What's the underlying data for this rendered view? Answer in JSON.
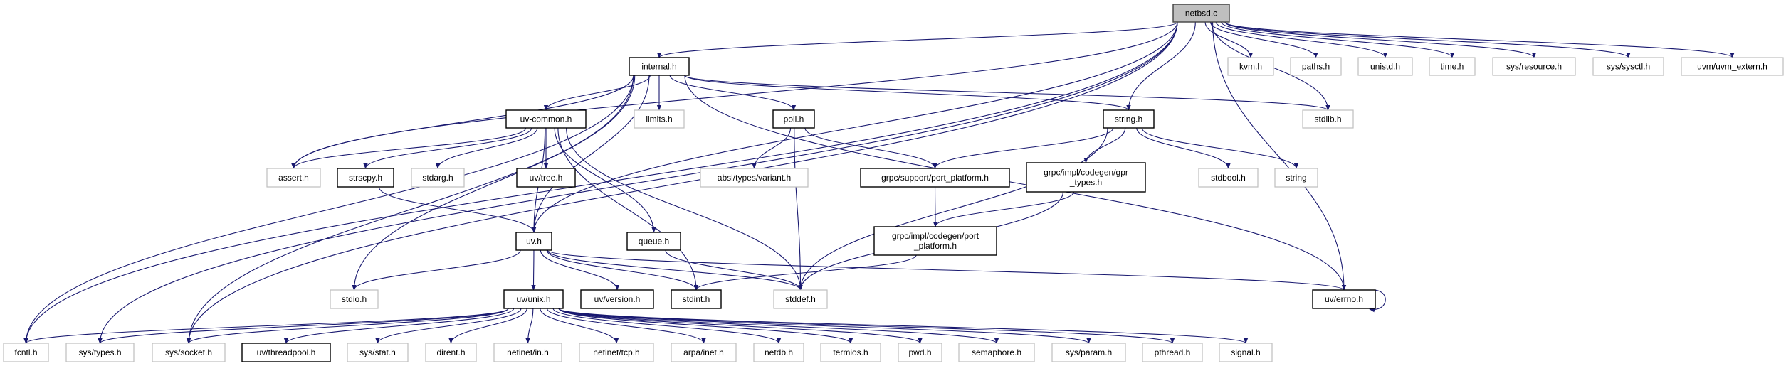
{
  "colors": {
    "edge": "#191970",
    "root_fill": "#bfbfbf",
    "documented_border": "#000000",
    "undocumented_border": "#bfbfbf"
  },
  "nodes": [
    {
      "id": "netbsd.c",
      "lines": [
        "netbsd.c"
      ],
      "kind": "root"
    },
    {
      "id": "internal.h",
      "lines": [
        "internal.h"
      ],
      "kind": "doc"
    },
    {
      "id": "kvm.h",
      "lines": [
        "kvm.h"
      ],
      "kind": "ext"
    },
    {
      "id": "paths.h",
      "lines": [
        "paths.h"
      ],
      "kind": "ext"
    },
    {
      "id": "unistd.h",
      "lines": [
        "unistd.h"
      ],
      "kind": "ext"
    },
    {
      "id": "time.h",
      "lines": [
        "time.h"
      ],
      "kind": "ext"
    },
    {
      "id": "sys/resource.h",
      "lines": [
        "sys/resource.h"
      ],
      "kind": "ext"
    },
    {
      "id": "sys/sysctl.h",
      "lines": [
        "sys/sysctl.h"
      ],
      "kind": "ext"
    },
    {
      "id": "uvm/uvm_extern.h",
      "lines": [
        "uvm/uvm_extern.h"
      ],
      "kind": "ext"
    },
    {
      "id": "uv-common.h",
      "lines": [
        "uv-common.h"
      ],
      "kind": "doc"
    },
    {
      "id": "limits.h",
      "lines": [
        "limits.h"
      ],
      "kind": "ext"
    },
    {
      "id": "poll.h",
      "lines": [
        "poll.h"
      ],
      "kind": "doc"
    },
    {
      "id": "string.h",
      "lines": [
        "string.h"
      ],
      "kind": "doc"
    },
    {
      "id": "stdlib.h",
      "lines": [
        "stdlib.h"
      ],
      "kind": "ext"
    },
    {
      "id": "assert.h",
      "lines": [
        "assert.h"
      ],
      "kind": "ext"
    },
    {
      "id": "strscpy.h",
      "lines": [
        "strscpy.h"
      ],
      "kind": "doc"
    },
    {
      "id": "stdarg.h",
      "lines": [
        "stdarg.h"
      ],
      "kind": "ext"
    },
    {
      "id": "uv/tree.h",
      "lines": [
        "uv/tree.h"
      ],
      "kind": "doc"
    },
    {
      "id": "absl/types/variant.h",
      "lines": [
        "absl/types/variant.h"
      ],
      "kind": "ext"
    },
    {
      "id": "grpc/support/port_platform.h",
      "lines": [
        "grpc/support/port_platform.h"
      ],
      "kind": "doc"
    },
    {
      "id": "grpc/impl/codegen/gpr_types.h",
      "lines": [
        "grpc/impl/codegen/gpr",
        "_types.h"
      ],
      "kind": "doc"
    },
    {
      "id": "stdbool.h",
      "lines": [
        "stdbool.h"
      ],
      "kind": "ext"
    },
    {
      "id": "string",
      "lines": [
        "string"
      ],
      "kind": "ext"
    },
    {
      "id": "uv.h",
      "lines": [
        "uv.h"
      ],
      "kind": "doc"
    },
    {
      "id": "queue.h",
      "lines": [
        "queue.h"
      ],
      "kind": "doc"
    },
    {
      "id": "grpc/impl/codegen/port_platform.h",
      "lines": [
        "grpc/impl/codegen/port",
        "_platform.h"
      ],
      "kind": "doc"
    },
    {
      "id": "stdio.h",
      "lines": [
        "stdio.h"
      ],
      "kind": "ext"
    },
    {
      "id": "uv/unix.h",
      "lines": [
        "uv/unix.h"
      ],
      "kind": "doc"
    },
    {
      "id": "uv/version.h",
      "lines": [
        "uv/version.h"
      ],
      "kind": "doc"
    },
    {
      "id": "stdint.h",
      "lines": [
        "stdint.h"
      ],
      "kind": "doc"
    },
    {
      "id": "stddef.h",
      "lines": [
        "stddef.h"
      ],
      "kind": "ext"
    },
    {
      "id": "uv/errno.h",
      "lines": [
        "uv/errno.h"
      ],
      "kind": "doc"
    },
    {
      "id": "fcntl.h",
      "lines": [
        "fcntl.h"
      ],
      "kind": "ext"
    },
    {
      "id": "sys/types.h",
      "lines": [
        "sys/types.h"
      ],
      "kind": "ext"
    },
    {
      "id": "sys/socket.h",
      "lines": [
        "sys/socket.h"
      ],
      "kind": "ext"
    },
    {
      "id": "uv/threadpool.h",
      "lines": [
        "uv/threadpool.h"
      ],
      "kind": "doc"
    },
    {
      "id": "sys/stat.h",
      "lines": [
        "sys/stat.h"
      ],
      "kind": "ext"
    },
    {
      "id": "dirent.h",
      "lines": [
        "dirent.h"
      ],
      "kind": "ext"
    },
    {
      "id": "netinet/in.h",
      "lines": [
        "netinet/in.h"
      ],
      "kind": "ext"
    },
    {
      "id": "netinet/tcp.h",
      "lines": [
        "netinet/tcp.h"
      ],
      "kind": "ext"
    },
    {
      "id": "arpa/inet.h",
      "lines": [
        "arpa/inet.h"
      ],
      "kind": "ext"
    },
    {
      "id": "netdb.h",
      "lines": [
        "netdb.h"
      ],
      "kind": "ext"
    },
    {
      "id": "termios.h",
      "lines": [
        "termios.h"
      ],
      "kind": "ext"
    },
    {
      "id": "pwd.h",
      "lines": [
        "pwd.h"
      ],
      "kind": "ext"
    },
    {
      "id": "semaphore.h",
      "lines": [
        "semaphore.h"
      ],
      "kind": "ext"
    },
    {
      "id": "sys/param.h",
      "lines": [
        "sys/param.h"
      ],
      "kind": "ext"
    },
    {
      "id": "pthread.h",
      "lines": [
        "pthread.h"
      ],
      "kind": "ext"
    },
    {
      "id": "signal.h",
      "lines": [
        "signal.h"
      ],
      "kind": "ext"
    }
  ],
  "edges": [
    [
      "netbsd.c",
      "internal.h"
    ],
    [
      "netbsd.c",
      "fcntl.h"
    ],
    [
      "netbsd.c",
      "sys/types.h"
    ],
    [
      "netbsd.c",
      "sys/socket.h"
    ],
    [
      "netbsd.c",
      "assert.h"
    ],
    [
      "netbsd.c",
      "uv.h"
    ],
    [
      "netbsd.c",
      "string.h"
    ],
    [
      "netbsd.c",
      "stdlib.h"
    ],
    [
      "netbsd.c",
      "uv/errno.h"
    ],
    [
      "netbsd.c",
      "kvm.h"
    ],
    [
      "netbsd.c",
      "paths.h"
    ],
    [
      "netbsd.c",
      "unistd.h"
    ],
    [
      "netbsd.c",
      "time.h"
    ],
    [
      "netbsd.c",
      "sys/resource.h"
    ],
    [
      "netbsd.c",
      "sys/sysctl.h"
    ],
    [
      "netbsd.c",
      "uvm/uvm_extern.h"
    ],
    [
      "internal.h",
      "uv-common.h"
    ],
    [
      "internal.h",
      "limits.h"
    ],
    [
      "internal.h",
      "poll.h"
    ],
    [
      "internal.h",
      "string.h"
    ],
    [
      "internal.h",
      "stdlib.h"
    ],
    [
      "internal.h",
      "uv/errno.h"
    ],
    [
      "internal.h",
      "assert.h"
    ],
    [
      "internal.h",
      "stdio.h"
    ],
    [
      "internal.h",
      "uv.h"
    ],
    [
      "internal.h",
      "fcntl.h"
    ],
    [
      "internal.h",
      "sys/socket.h"
    ],
    [
      "uv-common.h",
      "assert.h"
    ],
    [
      "uv-common.h",
      "strscpy.h"
    ],
    [
      "uv-common.h",
      "stdarg.h"
    ],
    [
      "uv-common.h",
      "uv/tree.h"
    ],
    [
      "uv-common.h",
      "uv.h"
    ],
    [
      "uv-common.h",
      "stdint.h"
    ],
    [
      "uv-common.h",
      "stddef.h"
    ],
    [
      "uv-common.h",
      "queue.h"
    ],
    [
      "strscpy.h",
      "uv.h"
    ],
    [
      "poll.h",
      "absl/types/variant.h"
    ],
    [
      "poll.h",
      "grpc/support/port_platform.h"
    ],
    [
      "poll.h",
      "stddef.h"
    ],
    [
      "string.h",
      "grpc/support/port_platform.h"
    ],
    [
      "string.h",
      "grpc/impl/codegen/gpr_types.h"
    ],
    [
      "string.h",
      "stddef.h"
    ],
    [
      "string.h",
      "stdbool.h"
    ],
    [
      "string.h",
      "string"
    ],
    [
      "grpc/support/port_platform.h",
      "grpc/impl/codegen/port_platform.h"
    ],
    [
      "grpc/impl/codegen/gpr_types.h",
      "grpc/impl/codegen/port_platform.h"
    ],
    [
      "grpc/impl/codegen/gpr_types.h",
      "stddef.h"
    ],
    [
      "grpc/impl/codegen/port_platform.h",
      "stdint.h"
    ],
    [
      "queue.h",
      "stddef.h"
    ],
    [
      "uv.h",
      "stdio.h"
    ],
    [
      "uv.h",
      "uv/unix.h"
    ],
    [
      "uv.h",
      "uv/version.h"
    ],
    [
      "uv.h",
      "stdint.h"
    ],
    [
      "uv.h",
      "stddef.h"
    ],
    [
      "uv.h",
      "uv/errno.h"
    ],
    [
      "uv/errno.h",
      "uv/errno.h"
    ],
    [
      "uv/unix.h",
      "fcntl.h"
    ],
    [
      "uv/unix.h",
      "sys/types.h"
    ],
    [
      "uv/unix.h",
      "sys/socket.h"
    ],
    [
      "uv/unix.h",
      "uv/threadpool.h"
    ],
    [
      "uv/unix.h",
      "sys/stat.h"
    ],
    [
      "uv/unix.h",
      "dirent.h"
    ],
    [
      "uv/unix.h",
      "netinet/in.h"
    ],
    [
      "uv/unix.h",
      "netinet/tcp.h"
    ],
    [
      "uv/unix.h",
      "arpa/inet.h"
    ],
    [
      "uv/unix.h",
      "netdb.h"
    ],
    [
      "uv/unix.h",
      "termios.h"
    ],
    [
      "uv/unix.h",
      "pwd.h"
    ],
    [
      "uv/unix.h",
      "semaphore.h"
    ],
    [
      "uv/unix.h",
      "sys/param.h"
    ],
    [
      "uv/unix.h",
      "pthread.h"
    ],
    [
      "uv/unix.h",
      "signal.h"
    ]
  ]
}
